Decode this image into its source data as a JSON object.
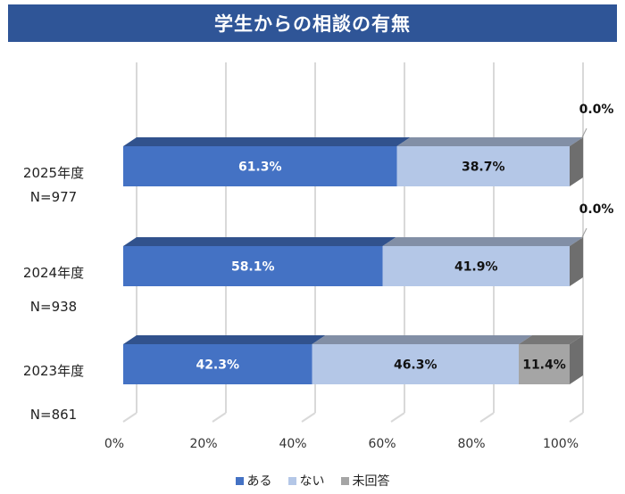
{
  "chart_data": {
    "type": "bar",
    "orientation": "horizontal",
    "stacked": true,
    "percent": true,
    "three_d": true,
    "title": "学生からの相談の有無",
    "categories": [
      {
        "year": "2025年度",
        "n": "N=977"
      },
      {
        "year": "2024年度",
        "n": "N=938"
      },
      {
        "year": "2023年度",
        "n": "N=861"
      }
    ],
    "series": [
      {
        "name": "ある",
        "color": "#4472c4",
        "label_color": "#ffffff",
        "values": [
          61.3,
          58.1,
          42.3
        ],
        "labels": [
          "61.3%",
          "58.1%",
          "42.3%"
        ]
      },
      {
        "name": "ない",
        "color": "#b4c7e7",
        "label_color": "#111111",
        "values": [
          38.7,
          41.9,
          46.3
        ],
        "labels": [
          "38.7%",
          "41.9%",
          "46.3%"
        ]
      },
      {
        "name": "未回答",
        "color": "#a5a5a5",
        "label_color": "#111111",
        "values": [
          0.0,
          0.0,
          11.4
        ],
        "labels": [
          "0.0%",
          "0.0%",
          "11.4%"
        ]
      }
    ],
    "x_ticks": [
      "0%",
      "20%",
      "40%",
      "60%",
      "80%",
      "100%"
    ],
    "xlim": [
      0,
      100
    ],
    "grid": true,
    "legend_position": "bottom"
  }
}
